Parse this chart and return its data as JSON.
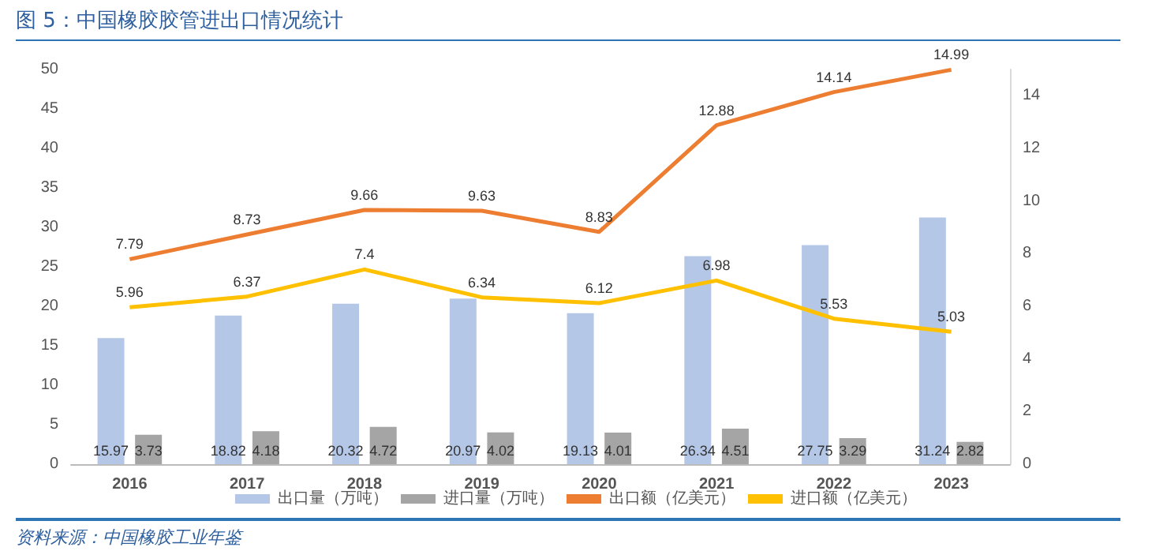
{
  "chart_data": {
    "type": "bar",
    "title": "图 5：中国橡胶胶管进出口情况统计",
    "categories": [
      "2016",
      "2017",
      "2018",
      "2019",
      "2020",
      "2021",
      "2022",
      "2023"
    ],
    "series": [
      {
        "name": "出口量（万吨）",
        "color": "#b4c7e7",
        "values": [
          15.97,
          18.82,
          20.32,
          20.97,
          19.13,
          26.34,
          27.75,
          31.24
        ]
      },
      {
        "name": "进口量（万吨）",
        "color": "#a5a5a5",
        "values": [
          3.73,
          4.18,
          4.72,
          4.02,
          4.01,
          4.51,
          3.29,
          2.82
        ]
      },
      {
        "name": "出口额（亿美元）",
        "type": "line",
        "axis": "y2",
        "color": "#ed7d31",
        "values": [
          7.79,
          8.73,
          9.66,
          9.63,
          8.83,
          12.88,
          14.14,
          14.99
        ]
      },
      {
        "name": "进口额（亿美元）",
        "type": "line",
        "axis": "y2",
        "color": "#ffc000",
        "values": [
          5.96,
          6.37,
          7.4,
          6.34,
          6.12,
          6.98,
          5.53,
          5.03
        ]
      }
    ],
    "ylim": [
      0,
      50
    ],
    "yticks": [
      0,
      5,
      10,
      15,
      20,
      25,
      30,
      35,
      40,
      45,
      50
    ],
    "y2lim": [
      0,
      15
    ],
    "y2ticks": [
      0,
      2,
      4,
      6,
      8,
      10,
      12,
      14
    ],
    "data_labels": true,
    "grid": false,
    "legend": "bottom",
    "marker": "none",
    "annotations": [
      "资料来源：中国橡胶工业年鉴"
    ]
  }
}
